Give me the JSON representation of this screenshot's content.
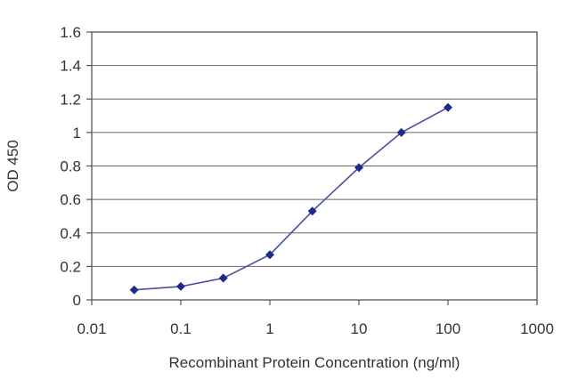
{
  "chart_data": {
    "type": "scatter",
    "x_scale": "log",
    "xlabel": "Recombinant Protein Concentration (ng/ml)",
    "ylabel": "OD 450",
    "xlim": [
      0.01,
      1000
    ],
    "ylim": [
      0,
      1.6
    ],
    "x_ticks": [
      "0.01",
      "0.1",
      "1",
      "10",
      "100",
      "1000"
    ],
    "y_ticks": [
      "0",
      "0.2",
      "0.4",
      "0.6",
      "0.8",
      "1",
      "1.2",
      "1.4",
      "1.6"
    ],
    "grid": "horizontal",
    "series": [
      {
        "x": [
          0.03,
          0.1,
          0.3,
          1,
          3,
          10,
          30,
          100
        ],
        "y": [
          0.06,
          0.08,
          0.13,
          0.27,
          0.53,
          0.79,
          1.0,
          1.15
        ],
        "color": "#4a4fa0",
        "marker": "diamond",
        "marker_color": "#1f2b8a"
      }
    ]
  }
}
